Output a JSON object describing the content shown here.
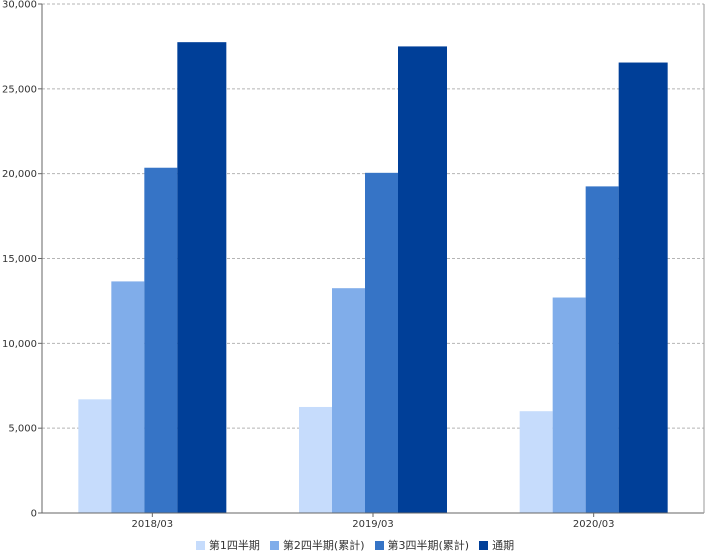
{
  "chart_data": {
    "type": "bar",
    "title": "",
    "xlabel": "",
    "ylabel": "",
    "categories": [
      "2018/03",
      "2019/03",
      "2020/03"
    ],
    "series": [
      {
        "name": "第1四半期",
        "color": "#c6dcfc",
        "values": [
          6700,
          6250,
          6000
        ]
      },
      {
        "name": "第2四半期(累計)",
        "color": "#80adea",
        "values": [
          13650,
          13250,
          12700
        ]
      },
      {
        "name": "第3四半期(累計)",
        "color": "#3674c6",
        "values": [
          20350,
          20050,
          19250
        ]
      },
      {
        "name": "通期",
        "color": "#003f98",
        "values": [
          27750,
          27500,
          26550
        ]
      }
    ],
    "ylim": [
      0,
      30000
    ],
    "yticks": [
      "0",
      "5,000",
      "10,000",
      "15,000",
      "20,000",
      "25,000",
      "30,000"
    ],
    "grid": true,
    "legend_position": "bottom"
  }
}
